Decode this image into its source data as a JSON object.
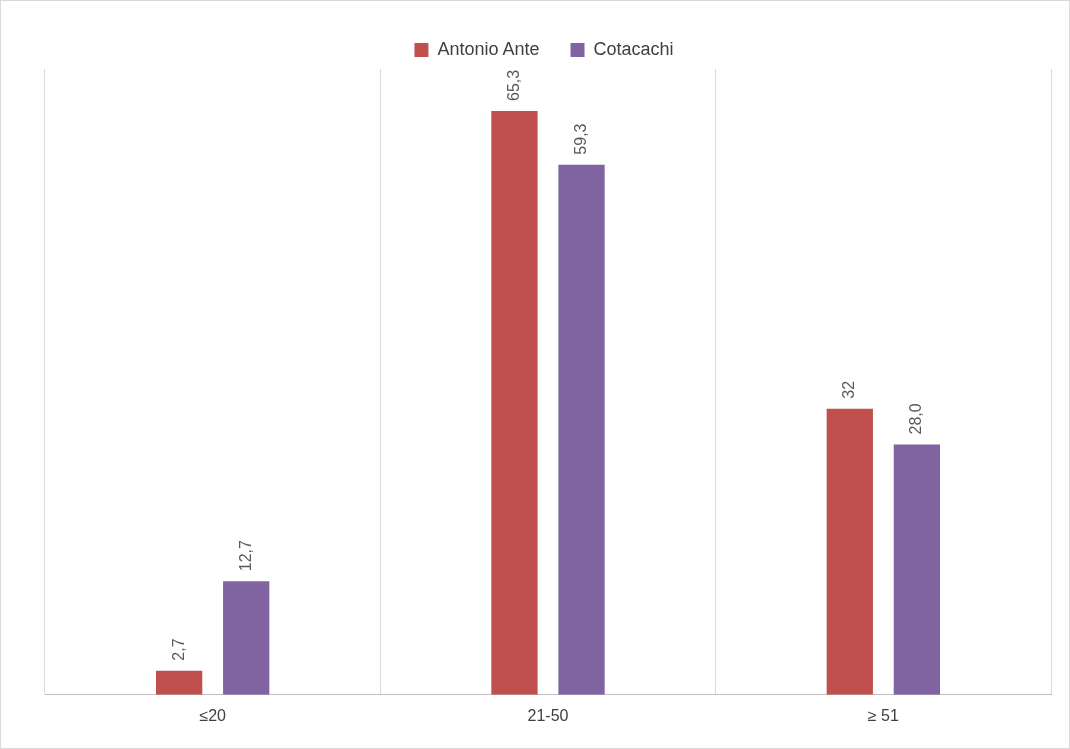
{
  "chart_data": {
    "type": "bar",
    "categories": [
      "≤20",
      "21-50",
      "≥ 51"
    ],
    "series": [
      {
        "name": "Antonio Ante",
        "color": "#c0504d",
        "values": [
          2.7,
          65.3,
          32
        ],
        "value_labels": [
          "2,7",
          "65,3",
          "32"
        ]
      },
      {
        "name": "Cotacachi",
        "color": "#8064a2",
        "values": [
          12.7,
          59.3,
          28.0
        ],
        "value_labels": [
          "12,7",
          "59,3",
          "28,0"
        ]
      }
    ],
    "ylim": [
      0,
      70
    ],
    "tick_labels": "x",
    "grid": "x",
    "legend": "top"
  }
}
